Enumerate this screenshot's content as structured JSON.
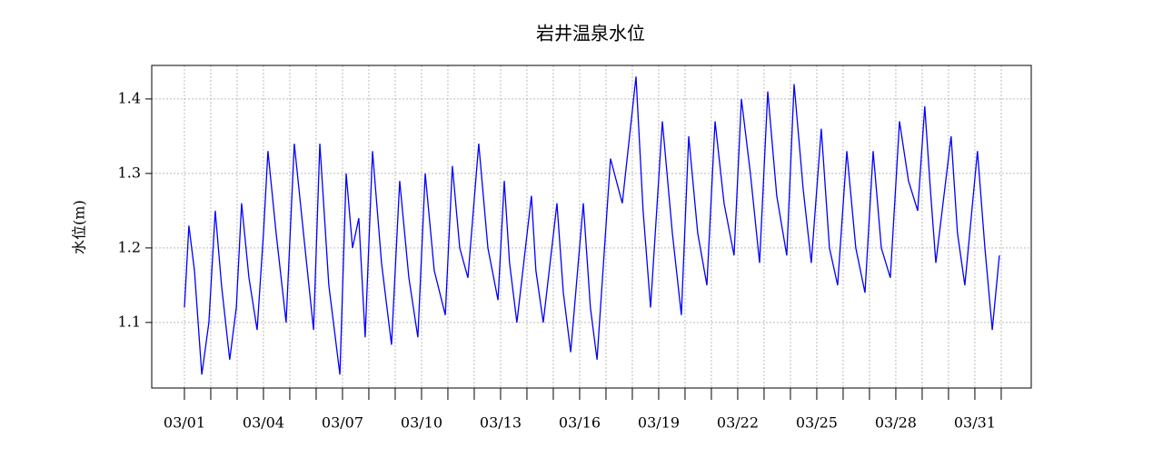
{
  "chart_data": {
    "type": "line",
    "title": "岩井温泉水位",
    "y_label": "水位(m)",
    "x": [
      1.0,
      1.17,
      1.38,
      1.66,
      1.93,
      2.17,
      2.41,
      2.72,
      2.97,
      3.17,
      3.45,
      3.76,
      4.0,
      4.17,
      4.48,
      4.86,
      5.17,
      5.52,
      5.9,
      6.14,
      6.48,
      6.9,
      7.14,
      7.38,
      7.62,
      7.86,
      8.14,
      8.48,
      8.86,
      9.17,
      9.52,
      9.86,
      10.14,
      10.48,
      10.9,
      11.17,
      11.45,
      11.76,
      12.17,
      12.52,
      12.9,
      13.14,
      13.34,
      13.62,
      14.17,
      14.34,
      14.62,
      15.14,
      15.38,
      15.66,
      16.14,
      16.41,
      16.66,
      17.17,
      17.62,
      18.14,
      18.41,
      18.69,
      19.14,
      19.52,
      19.86,
      20.14,
      20.48,
      20.83,
      21.14,
      21.48,
      21.86,
      22.14,
      22.48,
      22.83,
      23.14,
      23.48,
      23.86,
      24.14,
      24.48,
      24.79,
      25.17,
      25.48,
      25.79,
      26.14,
      26.48,
      26.83,
      27.14,
      27.45,
      27.79,
      28.14,
      28.48,
      28.83,
      29.1,
      29.31,
      29.52,
      30.1,
      30.34,
      30.62,
      31.1,
      31.38,
      31.66,
      31.93
    ],
    "series": [
      {
        "name": "水位",
        "color": "#0000ff",
        "values": [
          1.12,
          1.23,
          1.17,
          1.03,
          1.1,
          1.25,
          1.15,
          1.05,
          1.12,
          1.26,
          1.16,
          1.09,
          1.22,
          1.33,
          1.22,
          1.1,
          1.34,
          1.22,
          1.09,
          1.34,
          1.15,
          1.03,
          1.3,
          1.2,
          1.24,
          1.08,
          1.33,
          1.18,
          1.07,
          1.29,
          1.16,
          1.08,
          1.3,
          1.17,
          1.11,
          1.31,
          1.2,
          1.16,
          1.34,
          1.2,
          1.13,
          1.29,
          1.18,
          1.1,
          1.27,
          1.17,
          1.1,
          1.26,
          1.14,
          1.06,
          1.26,
          1.12,
          1.05,
          1.32,
          1.26,
          1.43,
          1.25,
          1.12,
          1.37,
          1.22,
          1.11,
          1.35,
          1.22,
          1.15,
          1.37,
          1.26,
          1.19,
          1.4,
          1.3,
          1.18,
          1.41,
          1.27,
          1.19,
          1.42,
          1.28,
          1.18,
          1.36,
          1.2,
          1.15,
          1.33,
          1.2,
          1.14,
          1.33,
          1.2,
          1.16,
          1.37,
          1.29,
          1.25,
          1.39,
          1.28,
          1.18,
          1.35,
          1.22,
          1.15,
          1.33,
          1.2,
          1.09,
          1.19
        ]
      }
    ],
    "xlim": [
      -0.24,
      33.14
    ],
    "ylim": [
      1.012,
      1.445
    ],
    "xticks": [
      {
        "value": 1,
        "label": "03/01"
      },
      {
        "value": 4,
        "label": "03/04"
      },
      {
        "value": 7,
        "label": "03/07"
      },
      {
        "value": 10,
        "label": "03/10"
      },
      {
        "value": 13,
        "label": "03/13"
      },
      {
        "value": 16,
        "label": "03/16"
      },
      {
        "value": 19,
        "label": "03/19"
      },
      {
        "value": 22,
        "label": "03/22"
      },
      {
        "value": 25,
        "label": "03/25"
      },
      {
        "value": 28,
        "label": "03/28"
      },
      {
        "value": 31,
        "label": "03/31"
      }
    ],
    "xminorticks": [
      1,
      2,
      3,
      4,
      5,
      6,
      7,
      8,
      9,
      10,
      11,
      12,
      13,
      14,
      15,
      16,
      17,
      18,
      19,
      20,
      21,
      22,
      23,
      24,
      25,
      26,
      27,
      28,
      29,
      30,
      31,
      32
    ],
    "yticks": [
      1.1,
      1.2,
      1.3,
      1.4
    ],
    "grid": true
  }
}
